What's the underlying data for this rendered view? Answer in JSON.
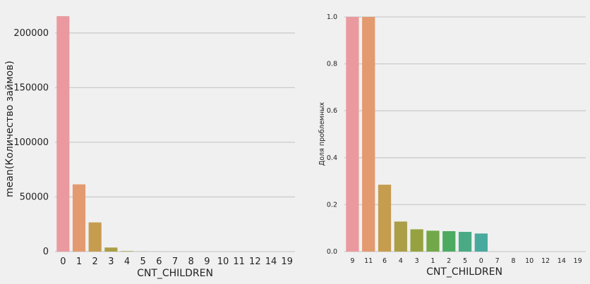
{
  "chart_data": [
    {
      "type": "bar",
      "title": "",
      "xlabel": "CNT_CHILDREN",
      "ylabel": "mean(Количество займов)",
      "categories": [
        "0",
        "1",
        "2",
        "3",
        "4",
        "5",
        "6",
        "7",
        "8",
        "9",
        "10",
        "11",
        "12",
        "14",
        "19"
      ],
      "values": [
        215400,
        61500,
        26700,
        3700,
        430,
        84,
        21,
        7,
        2,
        2,
        2,
        1,
        2,
        3,
        2
      ],
      "ylim": [
        0,
        216000
      ],
      "yticks": [
        0,
        50000,
        100000,
        150000,
        200000
      ],
      "grid": true,
      "colors": [
        "#ea9a9f",
        "#e39a6f",
        "#c69c4f",
        "#ab9e46",
        "#96a23f",
        "#72a84a",
        "#4caa61",
        "#4aaa85",
        "#48a99e",
        "#4ca6b5",
        "#58a2cf",
        "#8d97d9",
        "#b88ad8",
        "#d887cf",
        "#e68ab6"
      ]
    },
    {
      "type": "bar",
      "title": "",
      "xlabel": "CNT_CHILDREN",
      "ylabel": "Доля проблемных",
      "categories": [
        "9",
        "11",
        "6",
        "4",
        "3",
        "1",
        "2",
        "5",
        "0",
        "7",
        "8",
        "10",
        "12",
        "14",
        "19"
      ],
      "values": [
        1.0,
        1.0,
        0.285,
        0.128,
        0.095,
        0.089,
        0.087,
        0.084,
        0.077,
        0,
        0,
        0,
        0,
        0,
        0
      ],
      "ylim": [
        0,
        1.0
      ],
      "yticks": [
        0.0,
        0.2,
        0.4,
        0.6,
        0.8,
        1.0
      ],
      "ytick_labels": [
        "0.0",
        "0.2",
        "0.4",
        "0.6",
        "0.8",
        "1.0"
      ],
      "grid": true,
      "colors": [
        "#ea9a9f",
        "#e39a6f",
        "#c69c4f",
        "#ab9e46",
        "#96a23f",
        "#72a84a",
        "#4caa61",
        "#4aaa85",
        "#48a99e",
        "#4ca6b5",
        "#58a2cf",
        "#8d97d9",
        "#b88ad8",
        "#d887cf",
        "#e68ab6"
      ]
    }
  ]
}
